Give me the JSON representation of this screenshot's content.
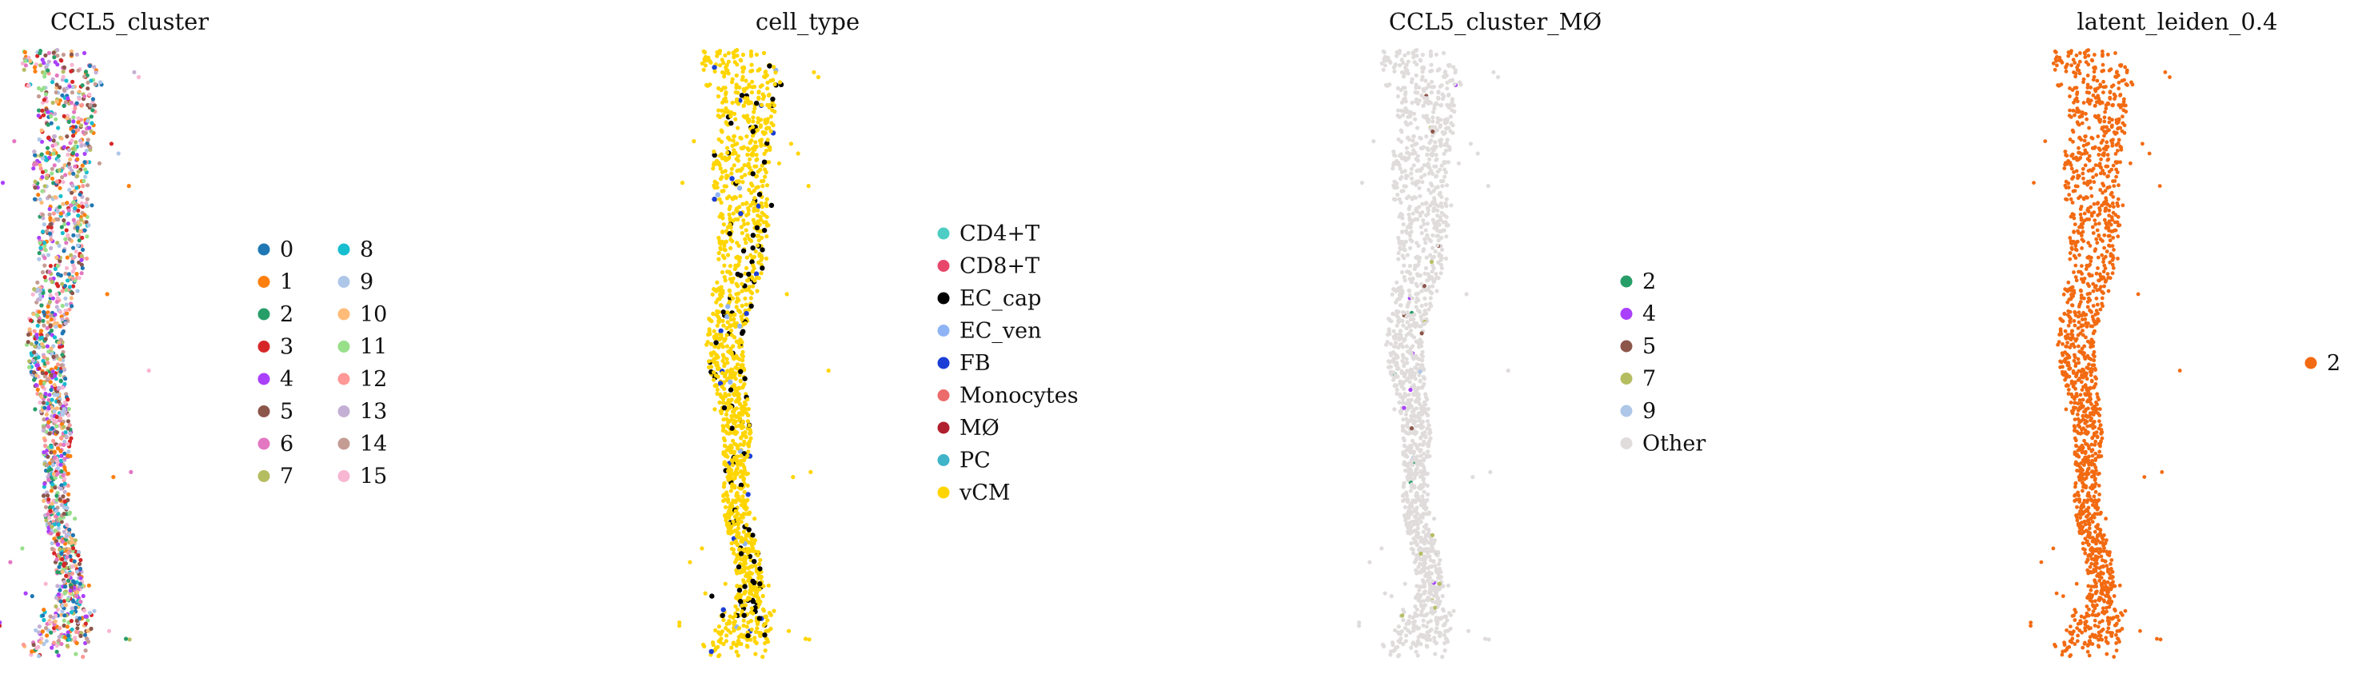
{
  "chart_data": [
    {
      "type": "scatter",
      "title": "CCL5_cluster",
      "legend_position": "right",
      "legend_columns": 2,
      "categories": [
        {
          "label": "0",
          "color": "#1f77b4"
        },
        {
          "label": "1",
          "color": "#ff7f0e"
        },
        {
          "label": "2",
          "color": "#279e68"
        },
        {
          "label": "3",
          "color": "#d62728"
        },
        {
          "label": "4",
          "color": "#aa40fc"
        },
        {
          "label": "5",
          "color": "#8c564b"
        },
        {
          "label": "6",
          "color": "#e377c2"
        },
        {
          "label": "7",
          "color": "#b5bd61"
        },
        {
          "label": "8",
          "color": "#17becf"
        },
        {
          "label": "9",
          "color": "#aec7e8"
        },
        {
          "label": "10",
          "color": "#ffbb78"
        },
        {
          "label": "11",
          "color": "#98df8a"
        },
        {
          "label": "12",
          "color": "#ff9896"
        },
        {
          "label": "13",
          "color": "#c5b0d5"
        },
        {
          "label": "14",
          "color": "#c49c94"
        },
        {
          "label": "15",
          "color": "#f7b6d2"
        }
      ],
      "axes_visible": false
    },
    {
      "type": "scatter",
      "title": "cell_type",
      "legend_position": "right",
      "legend_columns": 1,
      "categories": [
        {
          "label": "CD4+T",
          "color": "#4ecdc4"
        },
        {
          "label": "CD8+T",
          "color": "#e8476b"
        },
        {
          "label": "EC_cap",
          "color": "#000000"
        },
        {
          "label": "EC_ven",
          "color": "#8fb4f5"
        },
        {
          "label": "FB",
          "color": "#1c3ed6"
        },
        {
          "label": "Monocytes",
          "color": "#ec6b6b"
        },
        {
          "label": "MØ",
          "color": "#b01f2e"
        },
        {
          "label": "PC",
          "color": "#3fb4c9"
        },
        {
          "label": "vCM",
          "color": "#ffd500"
        }
      ],
      "axes_visible": false
    },
    {
      "type": "scatter",
      "title": "CCL5_cluster_MØ",
      "legend_position": "right",
      "legend_columns": 1,
      "categories": [
        {
          "label": "2",
          "color": "#279e68"
        },
        {
          "label": "4",
          "color": "#aa40fc"
        },
        {
          "label": "5",
          "color": "#8c564b"
        },
        {
          "label": "7",
          "color": "#b5bd61"
        },
        {
          "label": "9",
          "color": "#aec7e8"
        },
        {
          "label": "Other",
          "color": "#e0dcdc"
        }
      ],
      "axes_visible": false
    },
    {
      "type": "scatter",
      "title": "latent_leiden_0.4",
      "legend_position": "right",
      "legend_columns": 1,
      "categories": [
        {
          "label": "2",
          "color": "#f26a11"
        }
      ],
      "axes_visible": false
    }
  ]
}
